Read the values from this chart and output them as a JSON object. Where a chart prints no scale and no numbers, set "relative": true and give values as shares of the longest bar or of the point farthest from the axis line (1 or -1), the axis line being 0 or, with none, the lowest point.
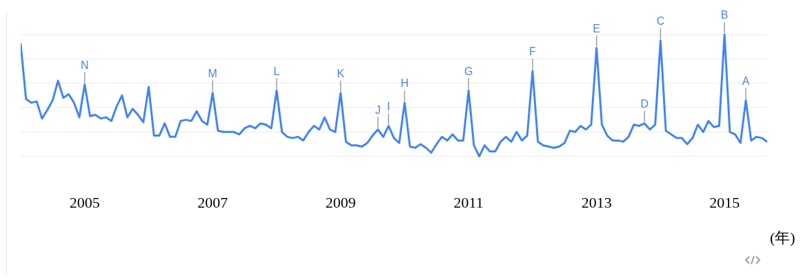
{
  "chart_data": {
    "type": "line",
    "relative": true,
    "xlabel": "(年)",
    "x": [
      "2004-01",
      "2004-02",
      "2004-03",
      "2004-04",
      "2004-05",
      "2004-06",
      "2004-07",
      "2004-08",
      "2004-09",
      "2004-10",
      "2004-11",
      "2004-12",
      "2005-01",
      "2005-02",
      "2005-03",
      "2005-04",
      "2005-05",
      "2005-06",
      "2005-07",
      "2005-08",
      "2005-09",
      "2005-10",
      "2005-11",
      "2005-12",
      "2006-01",
      "2006-02",
      "2006-03",
      "2006-04",
      "2006-05",
      "2006-06",
      "2006-07",
      "2006-08",
      "2006-09",
      "2006-10",
      "2006-11",
      "2006-12",
      "2007-01",
      "2007-02",
      "2007-03",
      "2007-04",
      "2007-05",
      "2007-06",
      "2007-07",
      "2007-08",
      "2007-09",
      "2007-10",
      "2007-11",
      "2007-12",
      "2008-01",
      "2008-02",
      "2008-03",
      "2008-04",
      "2008-05",
      "2008-06",
      "2008-07",
      "2008-08",
      "2008-09",
      "2008-10",
      "2008-11",
      "2008-12",
      "2009-01",
      "2009-02",
      "2009-03",
      "2009-04",
      "2009-05",
      "2009-06",
      "2009-07",
      "2009-08",
      "2009-09",
      "2009-10",
      "2009-11",
      "2009-12",
      "2010-01",
      "2010-02",
      "2010-03",
      "2010-04",
      "2010-05",
      "2010-06",
      "2010-07",
      "2010-08",
      "2010-09",
      "2010-10",
      "2010-11",
      "2010-12",
      "2011-01",
      "2011-02",
      "2011-03",
      "2011-04",
      "2011-05",
      "2011-06",
      "2011-07",
      "2011-08",
      "2011-09",
      "2011-10",
      "2011-11",
      "2011-12",
      "2012-01",
      "2012-02",
      "2012-03",
      "2012-04",
      "2012-05",
      "2012-06",
      "2012-07",
      "2012-08",
      "2012-09",
      "2012-10",
      "2012-11",
      "2012-12",
      "2013-01",
      "2013-02",
      "2013-03",
      "2013-04",
      "2013-05",
      "2013-06",
      "2013-07",
      "2013-08",
      "2013-09",
      "2013-10",
      "2013-11",
      "2013-12",
      "2014-01",
      "2014-02",
      "2014-03",
      "2014-04",
      "2014-05",
      "2014-06",
      "2014-07",
      "2014-08",
      "2014-09",
      "2014-10",
      "2014-11",
      "2014-12",
      "2015-01",
      "2015-02",
      "2015-03",
      "2015-04",
      "2015-05",
      "2015-06",
      "2015-07",
      "2015-08",
      "2015-09"
    ],
    "series": [
      {
        "color": "#4285f4",
        "values": [
          0.92,
          0.47,
          0.44,
          0.45,
          0.31,
          0.38,
          0.46,
          0.62,
          0.48,
          0.51,
          0.44,
          0.32,
          0.59,
          0.33,
          0.34,
          0.31,
          0.32,
          0.29,
          0.41,
          0.5,
          0.32,
          0.39,
          0.34,
          0.28,
          0.57,
          0.17,
          0.17,
          0.27,
          0.16,
          0.16,
          0.29,
          0.3,
          0.29,
          0.37,
          0.29,
          0.26,
          0.52,
          0.21,
          0.2,
          0.2,
          0.2,
          0.18,
          0.23,
          0.25,
          0.23,
          0.27,
          0.26,
          0.23,
          0.54,
          0.2,
          0.16,
          0.15,
          0.16,
          0.13,
          0.2,
          0.25,
          0.22,
          0.32,
          0.22,
          0.2,
          0.52,
          0.12,
          0.09,
          0.09,
          0.08,
          0.11,
          0.17,
          0.22,
          0.16,
          0.25,
          0.15,
          0.11,
          0.44,
          0.08,
          0.07,
          0.1,
          0.07,
          0.03,
          0.1,
          0.16,
          0.13,
          0.18,
          0.13,
          0.13,
          0.54,
          0.09,
          0,
          0.09,
          0.04,
          0.04,
          0.12,
          0.16,
          0.12,
          0.2,
          0.13,
          0.17,
          0.7,
          0.12,
          0.09,
          0.08,
          0.07,
          0.08,
          0.11,
          0.21,
          0.2,
          0.25,
          0.22,
          0.26,
          0.89,
          0.26,
          0.17,
          0.13,
          0.13,
          0.12,
          0.16,
          0.26,
          0.25,
          0.27,
          0.22,
          0.26,
          0.95,
          0.21,
          0.18,
          0.15,
          0.15,
          0.1,
          0.15,
          0.26,
          0.2,
          0.29,
          0.24,
          0.25,
          1,
          0.2,
          0.18,
          0.11,
          0.46,
          0.13,
          0.16,
          0.15,
          0.12
        ]
      }
    ],
    "xlim": [
      "2004-01",
      "2015-09"
    ],
    "xticks": [
      {
        "value": "2005",
        "label": "2005"
      },
      {
        "value": "2007",
        "label": "2007"
      },
      {
        "value": "2009",
        "label": "2009"
      },
      {
        "value": "2011",
        "label": "2011"
      },
      {
        "value": "2013",
        "label": "2013"
      },
      {
        "value": "2015",
        "label": "2015"
      }
    ],
    "grid": "y",
    "marker": "none",
    "line_style": "solid",
    "legend": false,
    "annotations": [
      {
        "text": "N",
        "x": "2005-01",
        "y": 0.59
      },
      {
        "text": "M",
        "x": "2007-01",
        "y": 0.52
      },
      {
        "text": "L",
        "x": "2008-01",
        "y": 0.54
      },
      {
        "text": "K",
        "x": "2009-01",
        "y": 0.52
      },
      {
        "text": "J",
        "x": "2009-08",
        "y": 0.22
      },
      {
        "text": "I",
        "x": "2009-10",
        "y": 0.25
      },
      {
        "text": "H",
        "x": "2010-01",
        "y": 0.44
      },
      {
        "text": "G",
        "x": "2011-01",
        "y": 0.54
      },
      {
        "text": "F",
        "x": "2012-01",
        "y": 0.7
      },
      {
        "text": "E",
        "x": "2013-01",
        "y": 0.89
      },
      {
        "text": "D",
        "x": "2013-10",
        "y": 0.27
      },
      {
        "text": "C",
        "x": "2014-01",
        "y": 0.95
      },
      {
        "text": "B",
        "x": "2015-01",
        "y": 1
      },
      {
        "text": "A",
        "x": "2015-05",
        "y": 0.46
      }
    ]
  }
}
